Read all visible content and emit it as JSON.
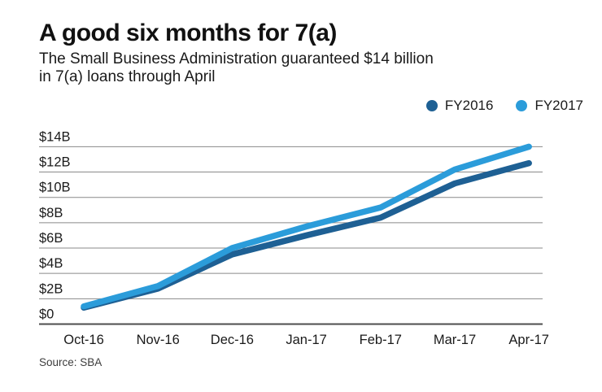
{
  "header": {
    "title": "A good six months for 7(a)",
    "subtitle_line1": "The Small Business Administration guaranteed $14 billion",
    "subtitle_line2": "in 7(a) loans through April"
  },
  "source_note": "Source: SBA",
  "colors": {
    "fy2016": "#1e6094",
    "fy2017": "#2b9cda",
    "gridline": "#8a8a8a",
    "axis_line": "#4d4d4d",
    "tick_text": "#1a1a1a"
  },
  "chart_data": {
    "type": "line",
    "title": "A good six months for 7(a)",
    "subtitle": "The Small Business Administration guaranteed $14 billion in 7(a) loans through April",
    "categories": [
      "Oct-16",
      "Nov-16",
      "Dec-16",
      "Jan-17",
      "Feb-17",
      "Mar-17",
      "Apr-17"
    ],
    "series": [
      {
        "name": "FY2016",
        "color": "#1e6094",
        "values": [
          1.3,
          2.8,
          5.5,
          7.0,
          8.4,
          11.1,
          12.7
        ]
      },
      {
        "name": "FY2017",
        "color": "#2b9cda",
        "values": [
          1.4,
          3.0,
          6.0,
          7.7,
          9.2,
          12.2,
          14.0
        ]
      }
    ],
    "yticks": [
      "$0",
      "$2B",
      "$4B",
      "$6B",
      "$8B",
      "$10B",
      "$12B",
      "$14B"
    ],
    "ytick_values": [
      0,
      2,
      4,
      6,
      8,
      10,
      12,
      14
    ],
    "ylim": [
      0,
      14
    ],
    "unit": "billions of dollars",
    "grid": true,
    "legend_position": "top-right",
    "source": "Source: SBA"
  }
}
